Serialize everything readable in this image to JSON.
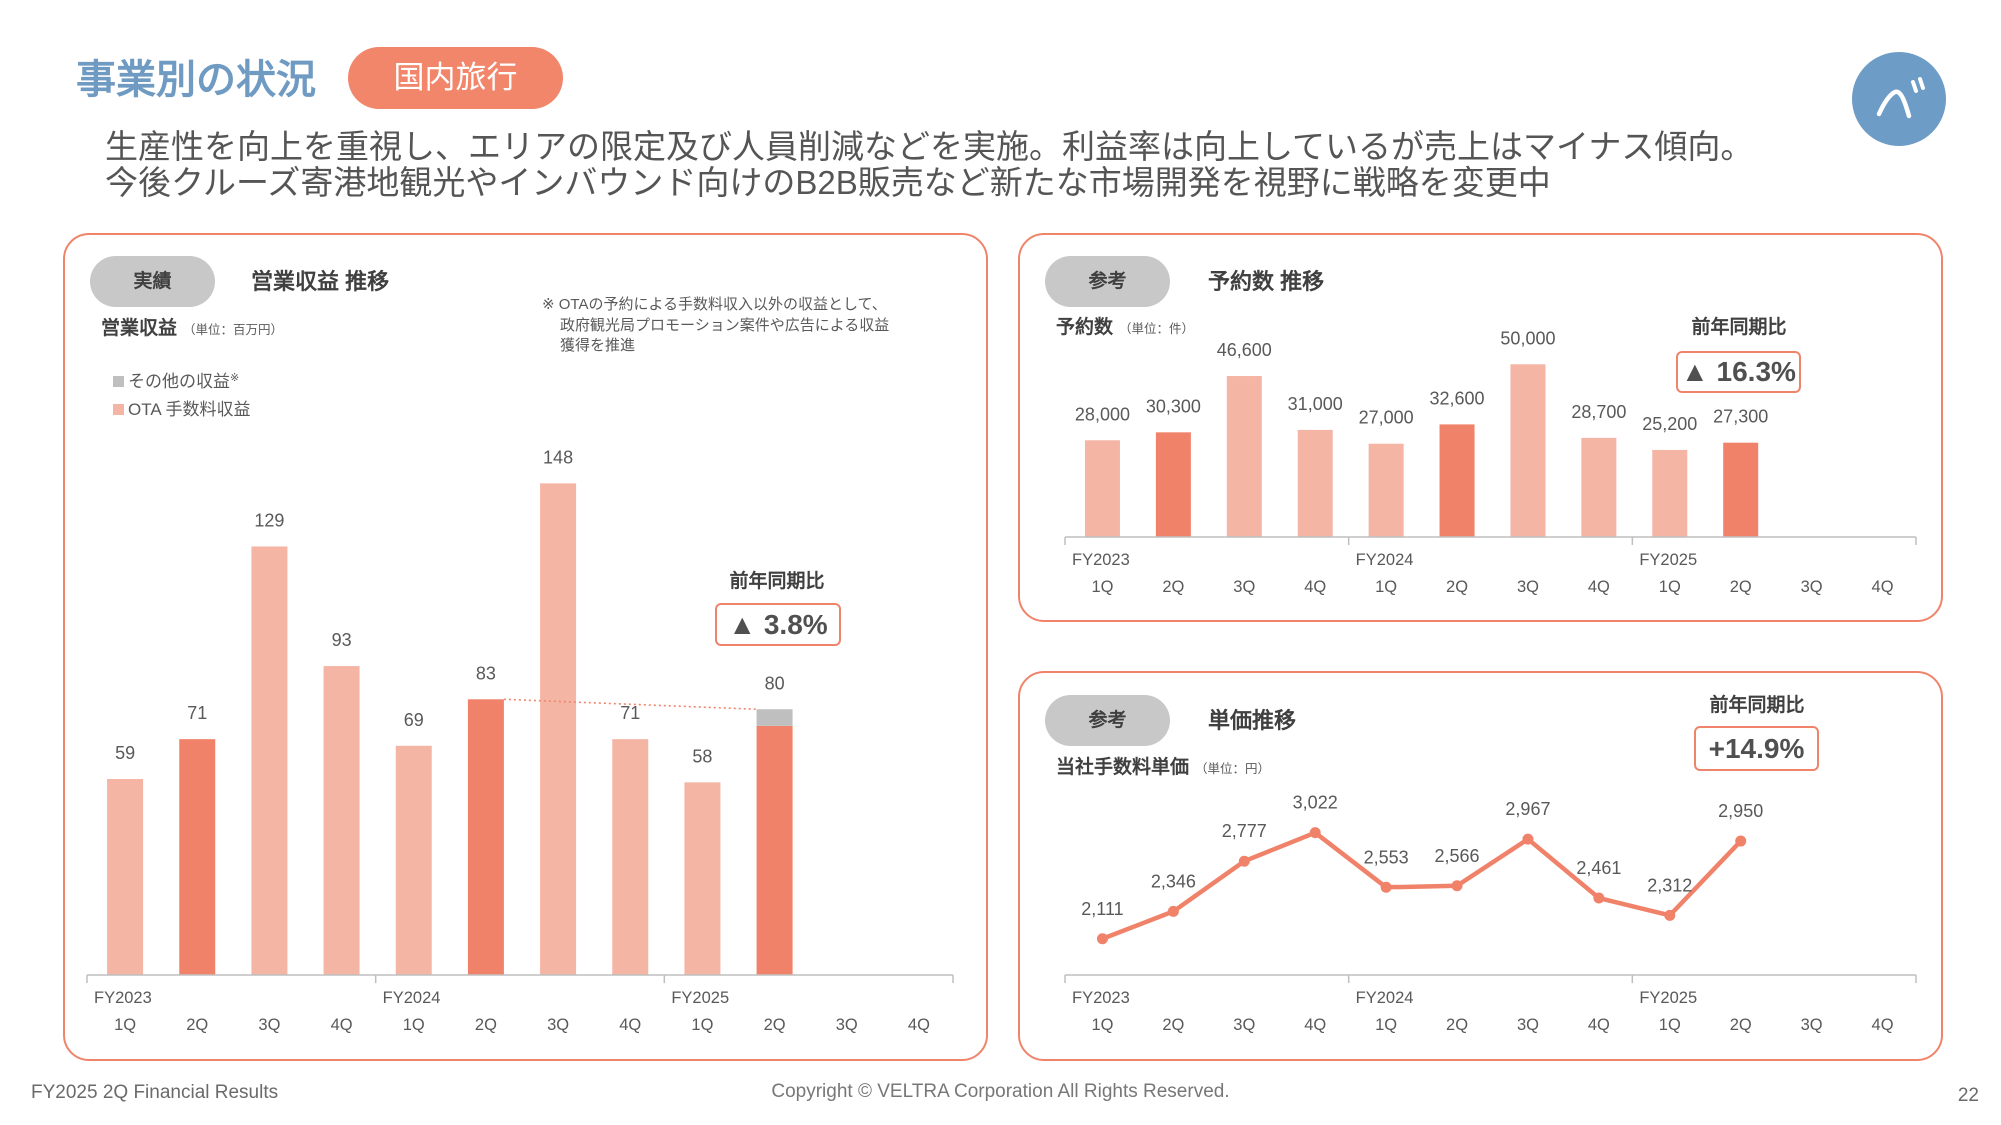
{
  "header": {
    "title": "事業別の状況",
    "segment": "国内旅行",
    "logo_icon": "veltra-logo-icon"
  },
  "lead": [
    "生産性を向上を重視し、エリアの限定及び人員削減などを実施。利益率は向上しているが売上はマイナス傾向。",
    "今後クルーズ寄港地観光やインバウンド向けのB2B販売など新たな市場開発を視野に戦略を変更中"
  ],
  "colors": {
    "title": "#6f9bc3",
    "accent": "#f0846a",
    "segment_badge": "#f2866b",
    "bar": "#f5b5a5",
    "bar_highlight": "#f1826a",
    "other_revenue": "#bfbfbf",
    "chart_badge": "#c8c8c8",
    "axis": "#bfbfbf",
    "logo": "#6d9cc6"
  },
  "chart_data": [
    {
      "type": "bar",
      "stacked": true,
      "badge": "実績",
      "title": "営業収益 推移",
      "ylabel": "営業収益",
      "unit": "（単位：百万円）",
      "note": [
        "※ OTAの予約による手数料収入以外の収益として、",
        "政府観光局プロモーション案件や広告による収益",
        "獲得を推進"
      ],
      "legend": [
        {
          "name": "その他の収益",
          "mark": "※",
          "color": "#bfbfbf"
        },
        {
          "name": "OTA 手数料収益",
          "color": "#f5b5a5"
        }
      ],
      "x_groups": [
        "FY2023",
        "FY2024",
        "FY2025"
      ],
      "categories": [
        "1Q",
        "2Q",
        "3Q",
        "4Q",
        "1Q",
        "2Q",
        "3Q",
        "4Q",
        "1Q",
        "2Q",
        "3Q",
        "4Q"
      ],
      "series": [
        {
          "name": "OTA 手数料収益",
          "values": [
            59,
            71,
            129,
            93,
            69,
            83,
            148,
            71,
            58,
            75,
            null,
            null
          ]
        },
        {
          "name": "その他の収益",
          "values": [
            0,
            0,
            0,
            0,
            0,
            0,
            0,
            0,
            0,
            5,
            null,
            null
          ]
        }
      ],
      "data_labels": [
        "59",
        "71",
        "129",
        "93",
        "69",
        "83",
        "148",
        "71",
        "58",
        "80",
        null,
        null
      ],
      "highlight_category": "2Q",
      "yoy": {
        "label": "前年同期比",
        "value": "▲ 3.8%"
      },
      "ylim": [
        0,
        160
      ],
      "grid": false
    },
    {
      "type": "bar",
      "badge": "参考",
      "title": "予約数 推移",
      "ylabel": "予約数",
      "unit": "（単位：件）",
      "x_groups": [
        "FY2023",
        "FY2024",
        "FY2025"
      ],
      "categories": [
        "1Q",
        "2Q",
        "3Q",
        "4Q",
        "1Q",
        "2Q",
        "3Q",
        "4Q",
        "1Q",
        "2Q",
        "3Q",
        "4Q"
      ],
      "series": [
        {
          "values": [
            28000,
            30300,
            46600,
            31000,
            27000,
            32600,
            50000,
            28700,
            25200,
            27300,
            null,
            null
          ]
        }
      ],
      "data_labels": [
        "28,000",
        "30,300",
        "46,600",
        "31,000",
        "27,000",
        "32,600",
        "50,000",
        "28,700",
        "25,200",
        "27,300",
        null,
        null
      ],
      "highlight_category": "2Q",
      "yoy": {
        "label": "前年同期比",
        "value": "▲ 16.3%"
      },
      "ylim": [
        0,
        55000
      ],
      "grid": false
    },
    {
      "type": "line",
      "badge": "参考",
      "title": "単価推移",
      "ylabel": "当社手数料単価",
      "unit": "（単位：円）",
      "x_groups": [
        "FY2023",
        "FY2024",
        "FY2025"
      ],
      "categories": [
        "1Q",
        "2Q",
        "3Q",
        "4Q",
        "1Q",
        "2Q",
        "3Q",
        "4Q",
        "1Q",
        "2Q",
        "3Q",
        "4Q"
      ],
      "series": [
        {
          "values": [
            2111,
            2346,
            2777,
            3022,
            2553,
            2566,
            2967,
            2461,
            2312,
            2950,
            null,
            null
          ]
        }
      ],
      "data_labels": [
        "2,111",
        "2,346",
        "2,777",
        "3,022",
        "2,553",
        "2,566",
        "2,967",
        "2,461",
        "2,312",
        "2,950",
        null,
        null
      ],
      "yoy": {
        "label": "前年同期比",
        "value": "+14.9%"
      },
      "ylim": [
        1800,
        3500
      ],
      "grid": false
    }
  ],
  "footer": {
    "left": "FY2025 2Q Financial Results",
    "center": "Copyright © VELTRA Corporation All Rights Reserved.",
    "page_number": "22"
  }
}
